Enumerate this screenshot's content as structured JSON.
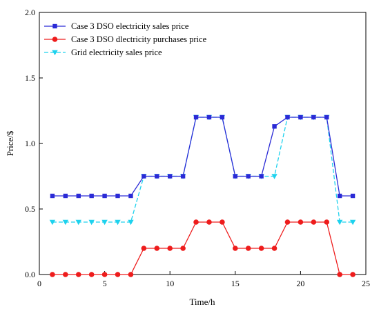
{
  "chart_data": {
    "type": "line",
    "xlabel": "Time/h",
    "ylabel": "Price/$",
    "xlim": [
      0,
      25
    ],
    "ylim": [
      0.0,
      2.0
    ],
    "xticks": [
      0,
      5,
      10,
      15,
      20,
      25
    ],
    "xtick_labels": [
      "0",
      "5",
      "10",
      "15",
      "20",
      "25"
    ],
    "yticks": [
      0.0,
      0.5,
      1.0,
      1.5,
      2.0
    ],
    "ytick_labels": [
      "0.0",
      "0.5",
      "1.0",
      "1.5",
      "2.0"
    ],
    "grid": false,
    "legend_position": "top-left",
    "x": [
      1,
      2,
      3,
      4,
      5,
      6,
      7,
      8,
      9,
      10,
      11,
      12,
      13,
      14,
      15,
      16,
      17,
      18,
      19,
      20,
      21,
      22,
      23,
      24
    ],
    "series": [
      {
        "name": "Case 3 DSO electricity sales price",
        "color": "#2a2ad6",
        "marker": "square",
        "line_style": "solid",
        "values": [
          0.6,
          0.6,
          0.6,
          0.6,
          0.6,
          0.6,
          0.6,
          0.75,
          0.75,
          0.75,
          0.75,
          1.2,
          1.2,
          1.2,
          0.75,
          0.75,
          0.75,
          1.13,
          1.2,
          1.2,
          1.2,
          1.2,
          0.6,
          0.6
        ]
      },
      {
        "name": "Case 3 DSO dlectricity purchases price",
        "color": "#ee1c1c",
        "marker": "circle",
        "line_style": "solid",
        "values": [
          0.0,
          0.0,
          0.0,
          0.0,
          0.0,
          0.0,
          0.0,
          0.2,
          0.2,
          0.2,
          0.2,
          0.4,
          0.4,
          0.4,
          0.2,
          0.2,
          0.2,
          0.2,
          0.4,
          0.4,
          0.4,
          0.4,
          0.0,
          0.0
        ]
      },
      {
        "name": "Grid electricity sales price",
        "color": "#1ed2ee",
        "marker": "triangle-down",
        "line_style": "dashed",
        "values": [
          0.4,
          0.4,
          0.4,
          0.4,
          0.4,
          0.4,
          0.4,
          0.75,
          0.75,
          0.75,
          0.75,
          1.2,
          1.2,
          1.2,
          0.75,
          0.75,
          0.75,
          0.75,
          1.2,
          1.2,
          1.2,
          1.2,
          0.4,
          0.4
        ]
      }
    ]
  }
}
